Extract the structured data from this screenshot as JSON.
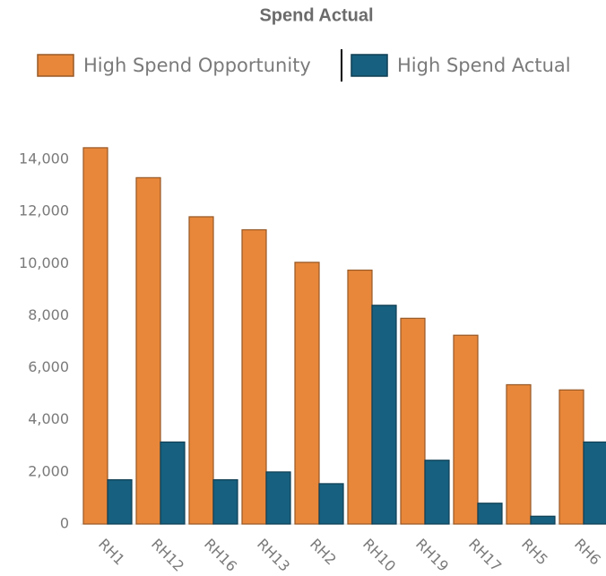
{
  "chart_data": {
    "type": "bar",
    "title": "Spend Actual",
    "categories": [
      "RH1",
      "RH12",
      "RH16",
      "RH13",
      "RH2",
      "RH10",
      "RH19",
      "RH17",
      "RH5",
      "RH6"
    ],
    "series": [
      {
        "name": "High Spend Opportunity",
        "color": "#e8873a",
        "values": [
          14450,
          13300,
          11800,
          11300,
          10050,
          9750,
          7900,
          7250,
          5350,
          5150
        ]
      },
      {
        "name": "High Spend Actual",
        "color": "#17607f",
        "values": [
          1700,
          3150,
          1700,
          2000,
          1550,
          8400,
          2450,
          800,
          300,
          3150
        ]
      }
    ],
    "ylim": [
      0,
      14000
    ],
    "yticks": [
      0,
      {
        "value": 2000,
        "label": "2,000"
      },
      {
        "value": 4000,
        "label": "4,000"
      },
      {
        "value": 6000,
        "label": "6,000"
      },
      {
        "value": 8000,
        "label": "8,000"
      },
      {
        "value": 10000,
        "label": "10,000"
      },
      {
        "value": 12000,
        "label": "12,000"
      },
      {
        "value": 14000,
        "label": "14,000"
      }
    ],
    "grid": false
  }
}
